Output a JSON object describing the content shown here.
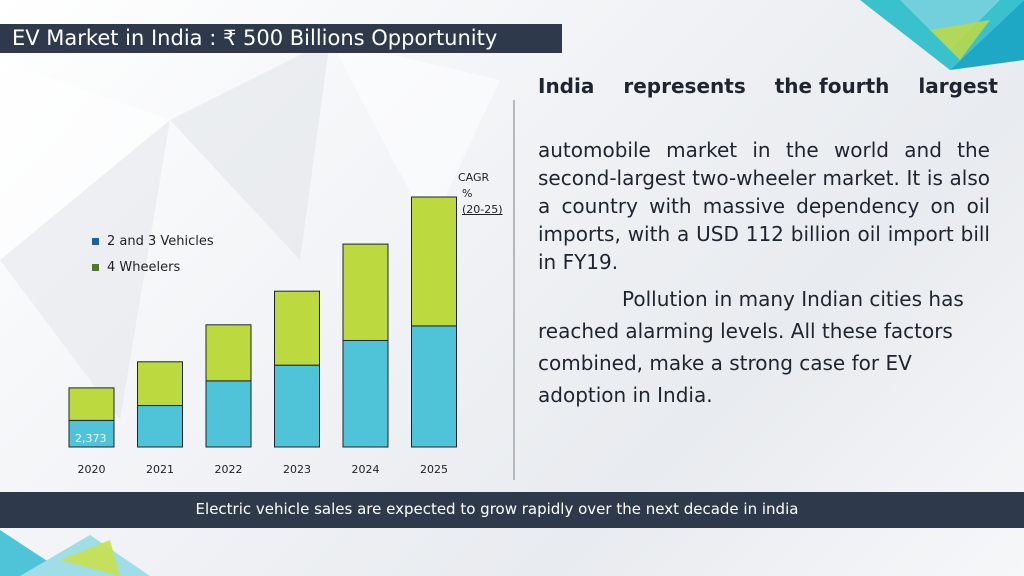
{
  "title": "EV Market in India : ₹ 500 Billions Opportunity",
  "paragraph1_words": [
    "India",
    "represents",
    "the fourth",
    "largest"
  ],
  "paragraph2": "automobile market in the world and the second-largest two-wheeler market. It is also a country with massive dependency on  oil imports, with a USD 112 billion oil import bill in FY19.",
  "paragraph3": "Pollution in many Indian cities has reached alarming levels. All these factors combined, make  a  strong case  for EV adoption in India.",
  "cagr": {
    "line1": "CAGR",
    "line2": "%",
    "line3": "(20-25)"
  },
  "footer": "Electric vehicle sales are expected to grow rapidly over the next decade in india",
  "colors": {
    "bar_bottom": "#4fc3d7",
    "bar_top": "#bcd93f",
    "dark": "#2e3a4b"
  },
  "chart_data": {
    "type": "bar",
    "stacked": true,
    "categories": [
      "2020",
      "2021",
      "2022",
      "2023",
      "2024",
      "2025"
    ],
    "series": [
      {
        "name": "2 and 3 Vehicles",
        "values": [
          2373,
          3700,
          5900,
          7300,
          9500,
          10800
        ]
      },
      {
        "name": "4 Wheelers",
        "values": [
          2900,
          3900,
          5000,
          6600,
          8600,
          11500
        ]
      }
    ],
    "data_labels": [
      "2,373",
      "",
      "",
      "",
      "",
      ""
    ],
    "ylim": [
      0,
      22300
    ],
    "legend_position": "left",
    "grid": false,
    "title": "",
    "xlabel": "",
    "ylabel": ""
  }
}
